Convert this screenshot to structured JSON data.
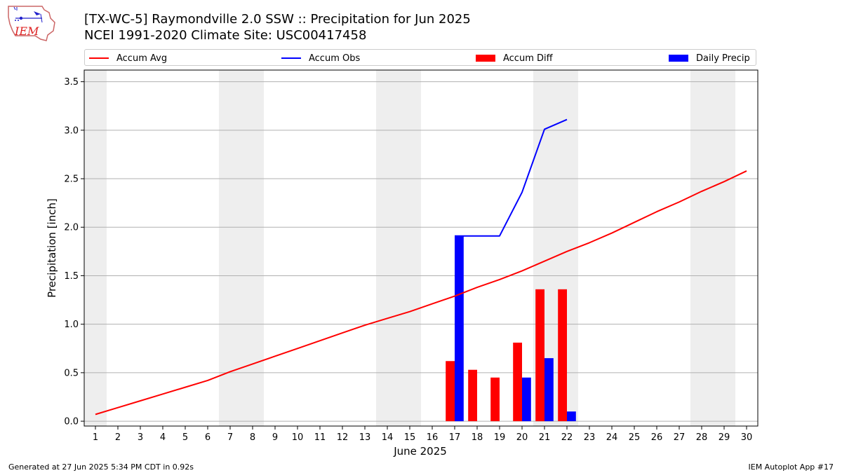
{
  "header": {
    "title_line1": "[TX-WC-5] Raymondville 2.0 SSW :: Precipitation for Jun 2025",
    "title_line2": "NCEI 1991-2020 Climate Site: USC00417458",
    "logo_text": "IEM"
  },
  "legend": {
    "position": "top",
    "items": [
      {
        "label": "Accum Avg",
        "kind": "line",
        "color": "#ff0000"
      },
      {
        "label": "Accum Obs",
        "kind": "line",
        "color": "#0000ff"
      },
      {
        "label": "Accum Diff",
        "kind": "bar",
        "color": "#ff0000"
      },
      {
        "label": "Daily Precip",
        "kind": "bar",
        "color": "#0000ff"
      }
    ]
  },
  "footer": {
    "left": "Generated at 27 Jun 2025 5:34 PM CDT in 0.92s",
    "right": "IEM Autoplot App #17"
  },
  "colors": {
    "avg": "#ff0000",
    "obs": "#0000ff",
    "weekend_shade": "#eeeeee",
    "grid": "#b0b0b0"
  },
  "chart_data": {
    "type": "bar",
    "xlabel": "June 2025",
    "ylabel": "Precipitation [inch]",
    "xlim": [
      0.5,
      30.5
    ],
    "ylim": [
      -0.05,
      3.62
    ],
    "yticks": [
      "0.0",
      "0.5",
      "1.0",
      "1.5",
      "2.0",
      "2.5",
      "3.0",
      "3.5"
    ],
    "x": [
      1,
      2,
      3,
      4,
      5,
      6,
      7,
      8,
      9,
      10,
      11,
      12,
      13,
      14,
      15,
      16,
      17,
      18,
      19,
      20,
      21,
      22,
      23,
      24,
      25,
      26,
      27,
      28,
      29,
      30
    ],
    "grid": true,
    "weekend_days": [
      1,
      7,
      8,
      14,
      15,
      21,
      22,
      28,
      29
    ],
    "series": [
      {
        "name": "Accum Avg",
        "kind": "line",
        "color": "#ff0000",
        "x": [
          1,
          2,
          3,
          4,
          5,
          6,
          7,
          8,
          9,
          10,
          11,
          12,
          13,
          14,
          15,
          16,
          17,
          18,
          19,
          20,
          21,
          22,
          23,
          24,
          25,
          26,
          27,
          28,
          29,
          30
        ],
        "values": [
          0.07,
          0.14,
          0.21,
          0.28,
          0.35,
          0.42,
          0.51,
          0.59,
          0.67,
          0.75,
          0.83,
          0.91,
          0.99,
          1.06,
          1.13,
          1.21,
          1.29,
          1.38,
          1.46,
          1.55,
          1.65,
          1.75,
          1.84,
          1.94,
          2.05,
          2.16,
          2.26,
          2.37,
          2.47,
          2.58
        ]
      },
      {
        "name": "Accum Obs",
        "kind": "line",
        "color": "#0000ff",
        "x": [
          17,
          18,
          19,
          20,
          21,
          22
        ],
        "values": [
          1.91,
          1.91,
          1.91,
          2.36,
          3.01,
          3.11
        ]
      },
      {
        "name": "Accum Diff",
        "kind": "bar",
        "color": "#ff0000",
        "x": [
          17,
          18,
          19,
          20,
          21,
          22
        ],
        "values": [
          0.62,
          0.53,
          0.45,
          0.81,
          1.36,
          1.36
        ]
      },
      {
        "name": "Daily Precip",
        "kind": "bar",
        "color": "#0000ff",
        "x": [
          17,
          20,
          21,
          22
        ],
        "values": [
          1.91,
          0.45,
          0.65,
          0.1
        ]
      }
    ]
  }
}
